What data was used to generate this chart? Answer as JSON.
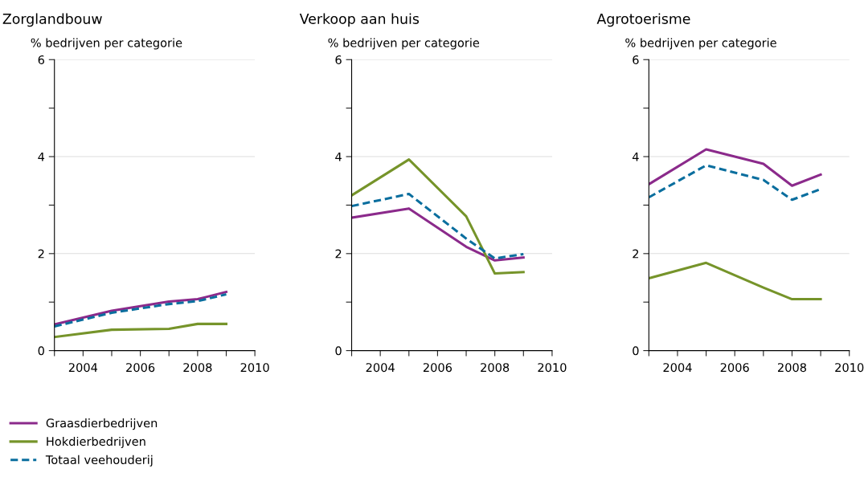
{
  "chart_data": [
    {
      "type": "line",
      "title": "Zorglandbouw",
      "ylabel": "% bedrijven per categorie",
      "legend": "bottom left",
      "grid": "y",
      "xlim": [
        2003,
        2010
      ],
      "ylim": [
        0,
        6
      ],
      "xticks": [
        {
          "value": 2003,
          "label": null
        },
        2004,
        {
          "value": 2005,
          "label": null
        },
        2006,
        {
          "value": 2007,
          "label": null
        },
        2008,
        {
          "value": 2009,
          "label": null
        },
        2010
      ],
      "yticks": [
        0,
        {
          "value": 1,
          "label": null
        },
        2,
        {
          "value": 3,
          "label": null
        },
        4,
        {
          "value": 5,
          "label": null
        },
        6
      ],
      "x": [
        2003,
        2005,
        2007,
        2008,
        2009
      ],
      "series": [
        {
          "name": "Graasdierbedrijven",
          "color": "#8b2a8b",
          "line_style": "solid",
          "values": [
            0.54,
            0.82,
            1.01,
            1.06,
            1.21
          ]
        },
        {
          "name": "Hokdierbedrijven",
          "color": "#76942a",
          "line_style": "solid",
          "values": [
            0.28,
            0.43,
            0.45,
            0.55,
            0.55
          ]
        },
        {
          "name": "Totaal veehouderij",
          "color": "#0a6e9e",
          "line_style": "dashed",
          "values": [
            0.5,
            0.78,
            0.96,
            1.02,
            1.16
          ]
        }
      ]
    },
    {
      "type": "line",
      "title": "Verkoop aan huis",
      "ylabel": "% bedrijven per categorie",
      "grid": "y",
      "xlim": [
        2003,
        2010
      ],
      "ylim": [
        0,
        6
      ],
      "xticks": [
        {
          "value": 2003,
          "label": null
        },
        2004,
        {
          "value": 2005,
          "label": null
        },
        2006,
        {
          "value": 2007,
          "label": null
        },
        2008,
        {
          "value": 2009,
          "label": null
        },
        2010
      ],
      "yticks": [
        0,
        {
          "value": 1,
          "label": null
        },
        2,
        {
          "value": 3,
          "label": null
        },
        4,
        {
          "value": 5,
          "label": null
        },
        6
      ],
      "x": [
        2003,
        2005,
        2007,
        2008,
        2009
      ],
      "series": [
        {
          "color": "#8b2a8b",
          "line_style": "solid",
          "values": [
            2.74,
            2.93,
            2.14,
            1.86,
            1.92
          ]
        },
        {
          "color": "#76942a",
          "line_style": "solid",
          "values": [
            3.2,
            3.94,
            2.77,
            1.59,
            1.62
          ]
        },
        {
          "color": "#0a6e9e",
          "line_style": "dashed",
          "values": [
            2.98,
            3.23,
            2.31,
            1.9,
            1.99
          ]
        }
      ]
    },
    {
      "type": "line",
      "title": "Agrotoerisme",
      "ylabel": "% bedrijven per categorie",
      "grid": "y",
      "xlim": [
        2003,
        2010
      ],
      "ylim": [
        0,
        6
      ],
      "xticks": [
        {
          "value": 2003,
          "label": null
        },
        2004,
        {
          "value": 2005,
          "label": null
        },
        2006,
        {
          "value": 2007,
          "label": null
        },
        2008,
        {
          "value": 2009,
          "label": null
        },
        2010
      ],
      "yticks": [
        0,
        {
          "value": 1,
          "label": null
        },
        2,
        {
          "value": 3,
          "label": null
        },
        4,
        {
          "value": 5,
          "label": null
        },
        6
      ],
      "x": [
        2003,
        2005,
        2007,
        2008,
        2009
      ],
      "series": [
        {
          "color": "#8b2a8b",
          "line_style": "solid",
          "values": [
            3.43,
            4.15,
            3.85,
            3.4,
            3.63
          ]
        },
        {
          "color": "#76942a",
          "line_style": "solid",
          "values": [
            1.49,
            1.81,
            1.3,
            1.06,
            1.06
          ]
        },
        {
          "color": "#0a6e9e",
          "line_style": "dashed",
          "values": [
            3.16,
            3.82,
            3.52,
            3.11,
            3.33
          ]
        }
      ]
    }
  ]
}
